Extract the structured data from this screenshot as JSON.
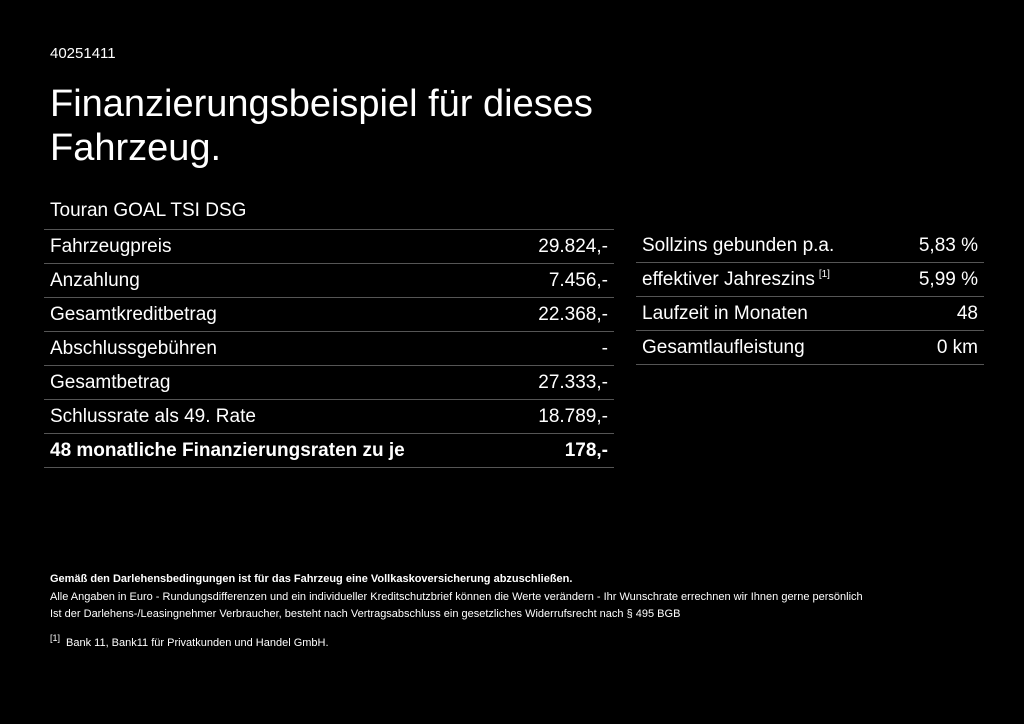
{
  "header": {
    "id": "40251411",
    "title": "Finanzierungsbeispiel für dieses Fahrzeug."
  },
  "left_table": {
    "heading": "Touran GOAL TSI DSG",
    "rows": [
      [
        "Fahrzeugpreis",
        "29.824,-"
      ],
      [
        "Anzahlung",
        "7.456,-"
      ],
      [
        "Gesamtkreditbetrag",
        "22.368,-"
      ],
      [
        "Abschlussgebühren",
        "-"
      ],
      [
        "Gesamtbetrag",
        "27.333,-"
      ],
      [
        "Schlussrate als 49. Rate",
        "18.789,-"
      ],
      [
        "48 monatliche Finanzierungsraten zu je",
        "178,-"
      ]
    ]
  },
  "right_table": {
    "rows": [
      [
        "Sollzins gebunden p.a.",
        "5,83 %"
      ],
      [
        "effektiver Jahreszins",
        "5,99 %"
      ],
      [
        "Laufzeit in Monaten",
        "48"
      ],
      [
        "Gesamtlaufleistung",
        "0 km"
      ]
    ],
    "footnote_ref": "[1]"
  },
  "notes": {
    "bold": "Gemäß den Darlehensbedingungen ist für das Fahrzeug eine Vollkaskoversicherung abzuschließen.",
    "lines": [
      "Alle Angaben in Euro - Rundungsdifferenzen und ein individueller Kreditschutzbrief können die Werte verändern - Ihr Wunschrate errechnen wir Ihnen gerne persönlich",
      "Ist der Darlehens-/Leasingnehmer Verbraucher, besteht nach Vertragsabschluss ein gesetzliches Widerrufsrecht nach § 495 BGB"
    ],
    "footnote": {
      "ref": "[1]",
      "text": "Bank 11, Bank11 für Privatkunden und Handel GmbH."
    }
  }
}
